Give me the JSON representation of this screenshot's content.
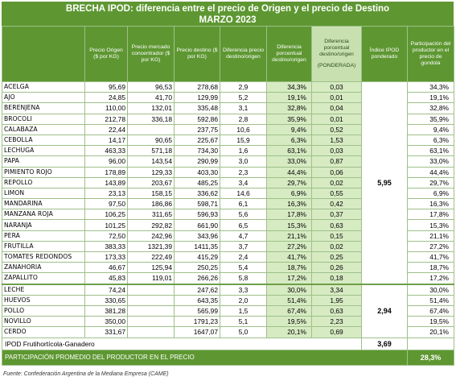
{
  "title_line1": "BRECHA IPOD: diferencia entre el precio de Origen y el precio de Destino",
  "title_line2": "MARZO 2023",
  "headers": {
    "producto": "",
    "precio_origen": "Precio Origen ($ por KG)",
    "precio_concentrador": "Precio mercado concentrador ($ por KG)",
    "precio_destino": "Precio destino ($ por KG)",
    "diferencia_precio": "Diferencia precio destino/origen",
    "diferencia_porcentual": "Diferencia porcentual destino/origen",
    "diferencia_ponderada": "Diferencia porcentual destino/origen",
    "diferencia_ponderada_sub": "(PONDERADA)",
    "indice_ipod": "Índice IPOD ponderado",
    "participacion": "Participación del productor en el precio de gondola"
  },
  "fruit_rows": [
    [
      "ACELGA",
      "95,69",
      "96,53",
      "278,68",
      "2,9",
      "34,3%",
      "0,03",
      "34,3%"
    ],
    [
      "AJO",
      "24,85",
      "41,70",
      "129,99",
      "5,2",
      "19,1%",
      "0,01",
      "19,1%"
    ],
    [
      "BERENJENA",
      "110,00",
      "132,01",
      "335,48",
      "3,1",
      "32,8%",
      "0,04",
      "32,8%"
    ],
    [
      "BROCOLI",
      "212,78",
      "336,18",
      "592,86",
      "2,8",
      "35,9%",
      "0,01",
      "35,9%"
    ],
    [
      "CALABAZA",
      "22,44",
      "",
      "237,75",
      "10,6",
      "9,4%",
      "0,52",
      "9,4%"
    ],
    [
      "CEBOLLA",
      "14,17",
      "90,65",
      "225,67",
      "15,9",
      "6,3%",
      "1,53",
      "6,3%"
    ],
    [
      "LECHUGA",
      "463,33",
      "571,18",
      "734,30",
      "1,6",
      "63,1%",
      "0,03",
      "63,1%"
    ],
    [
      "PAPA",
      "96,00",
      "143,54",
      "290,99",
      "3,0",
      "33,0%",
      "0,87",
      "33,0%"
    ],
    [
      "PIMIENTO ROJO",
      "178,89",
      "129,33",
      "403,30",
      "2,3",
      "44,4%",
      "0,06",
      "44,4%"
    ],
    [
      "REPOLLO",
      "143,89",
      "203,67",
      "485,25",
      "3,4",
      "29,7%",
      "0,02",
      "29,7%"
    ],
    [
      "LIMON",
      "23,13",
      "158,15",
      "336,62",
      "14,6",
      "6,9%",
      "0,55",
      "6,9%"
    ],
    [
      "MANDARINA",
      "97,50",
      "186,86",
      "598,71",
      "6,1",
      "16,3%",
      "0,42",
      "16,3%"
    ],
    [
      "MANZANA ROJA",
      "106,25",
      "311,65",
      "596,93",
      "5,6",
      "17,8%",
      "0,37",
      "17,8%"
    ],
    [
      "NARANJA",
      "101,25",
      "292,82",
      "661,90",
      "6,5",
      "15,3%",
      "0,63",
      "15,3%"
    ],
    [
      "PERA",
      "72,50",
      "242,96",
      "343,96",
      "4,7",
      "21,1%",
      "0,15",
      "21,1%"
    ],
    [
      "FRUTILLA",
      "383,33",
      "1321,39",
      "1411,35",
      "3,7",
      "27,2%",
      "0,02",
      "27,2%"
    ],
    [
      "TOMATES REDONDOS",
      "173,33",
      "222,49",
      "415,29",
      "2,4",
      "41,7%",
      "0,25",
      "41,7%"
    ],
    [
      "ZANAHORIA",
      "46,67",
      "125,94",
      "250,25",
      "5,4",
      "18,7%",
      "0,26",
      "18,7%"
    ],
    [
      "ZAPALLITO",
      "45,83",
      "119,01",
      "266,26",
      "5,8",
      "17,2%",
      "0,18",
      "17,2%"
    ]
  ],
  "fruit_ipod": "5,95",
  "animal_rows": [
    [
      "LECHE",
      "74,24",
      "",
      "247,62",
      "3,3",
      "30,0%",
      "3,34",
      "30,0%"
    ],
    [
      "HUEVOS",
      "330,65",
      "",
      "643,35",
      "2,0",
      "51,4%",
      "1,95",
      "51,4%"
    ],
    [
      "POLLO",
      "381,28",
      "",
      "565,99",
      "1,5",
      "67,4%",
      "0,63",
      "67,4%"
    ],
    [
      "NOVILLO",
      "350,00",
      "",
      "1791,23",
      "5,1",
      "19,5%",
      "2,23",
      "19,5%"
    ],
    [
      "CERDO",
      "331,67",
      "",
      "1647,07",
      "5,0",
      "20,1%",
      "0,69",
      "20,1%"
    ]
  ],
  "animal_ipod": "2,94",
  "total_label": "IPOD Frutihortícola-Ganadero",
  "total_value": "3,69",
  "participation_label": "PARTICIPACIÓN PROMEDIO DEL PRODUCTOR EN EL PRECIO",
  "participation_value": "28,3%",
  "source": "Fuente: Confederación Argentina de la Mediana Empresa (CAME)",
  "colors": {
    "header_green": "#5e9732",
    "highlight_green": "#d7ebc3"
  }
}
